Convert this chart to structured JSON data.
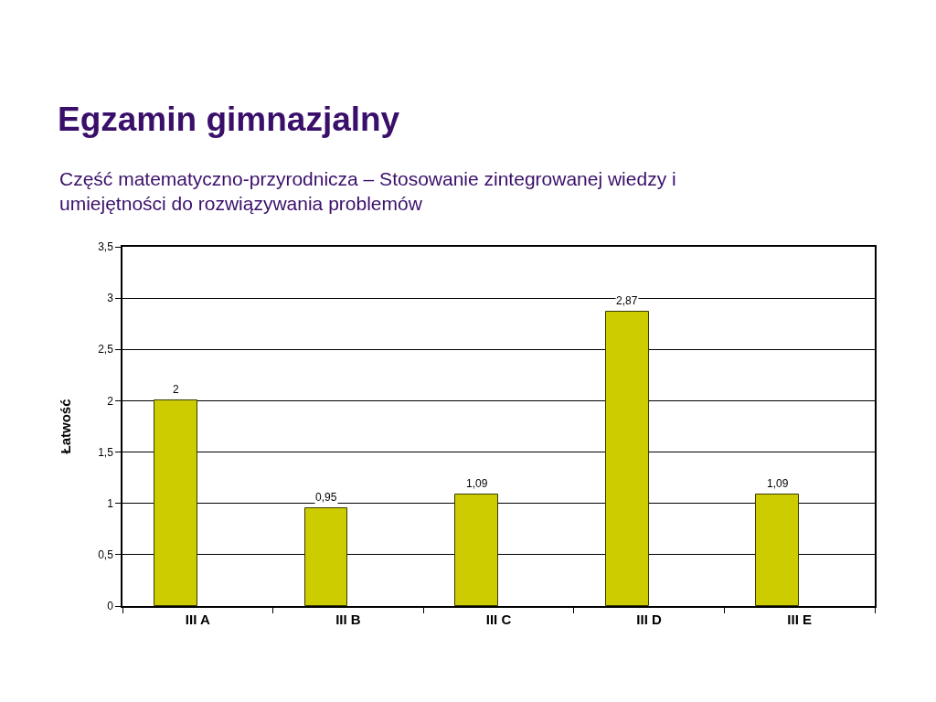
{
  "chart_data": {
    "type": "bar",
    "title": "Egzamin gimnazjalny",
    "subtitle": "Część matematyczno-przyrodnicza – Stosowanie zintegrowanej wiedzy i umiejętności do rozwiązywania problemów",
    "ylabel": "Łatwość",
    "categories": [
      "III A",
      "III B",
      "III C",
      "III D",
      "III E"
    ],
    "values": [
      2,
      0.95,
      1.09,
      2.87,
      1.09
    ],
    "value_labels": [
      "2",
      "0,95",
      "1,09",
      "2,87",
      "1,09"
    ],
    "color": "#cccc00",
    "ylim": [
      0,
      3.5
    ],
    "yticks": [
      0,
      {
        "value": 0.5,
        "label": "0,5"
      },
      1,
      {
        "value": 1.5,
        "label": "1,5"
      },
      2,
      {
        "value": 2.5,
        "label": "2,5"
      },
      3,
      {
        "value": 3.5,
        "label": "3,5"
      }
    ],
    "grid": "y"
  }
}
